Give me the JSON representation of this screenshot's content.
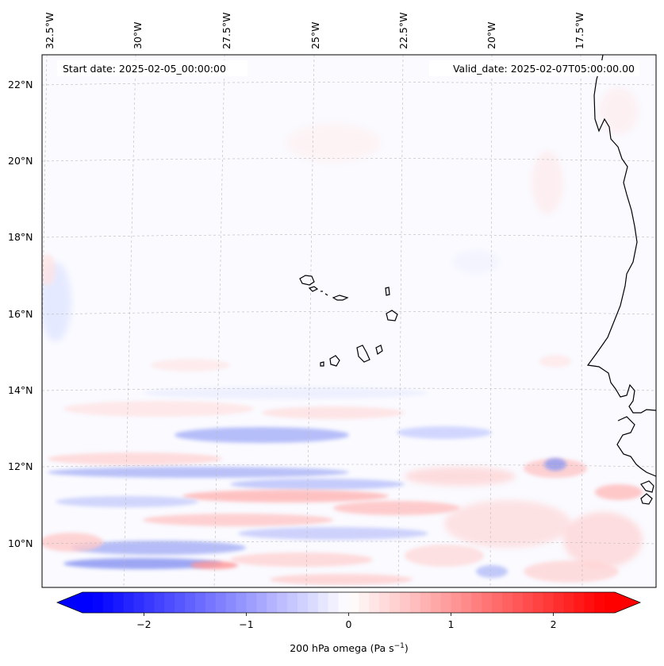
{
  "map": {
    "start_label": "Start date: 2025-02-05_00:00:00",
    "valid_label": "Valid_date: 2025-02-07T05:00:00.00",
    "lon_labels": [
      "32.5°W",
      "30°W",
      "27.5°W",
      "25°W",
      "22.5°W",
      "20°W",
      "17.5°W"
    ],
    "lat_labels": [
      "22°N",
      "20°N",
      "18°N",
      "16°N",
      "14°N",
      "12°N",
      "10°N"
    ],
    "extent": {
      "lon_min": -32.8,
      "lon_max": -15.0,
      "lat_min": 8.9,
      "lat_max": 22.8
    },
    "islands": [
      "Santo Antão",
      "São Vicente",
      "Santa Luzia",
      "São Nicolau",
      "Sal",
      "Boa Vista",
      "Maio",
      "Santiago",
      "Fogo",
      "Brava"
    ],
    "coastline": "West Africa (Mauritania, Senegal, Gambia, Guinea-Bissau)"
  },
  "colorbar": {
    "ticks": [
      "−2",
      "−1",
      "0",
      "1",
      "2"
    ],
    "tick_values": [
      -2,
      -1,
      0,
      1,
      2
    ],
    "range": [
      -2.6,
      2.6
    ],
    "label_main": "200 hPa omega (Pa s",
    "label_sup": "−1",
    "label_end": ")",
    "colors": {
      "negative": "#0000ff",
      "zero": "#ffffff",
      "positive": "#ff0000"
    }
  }
}
